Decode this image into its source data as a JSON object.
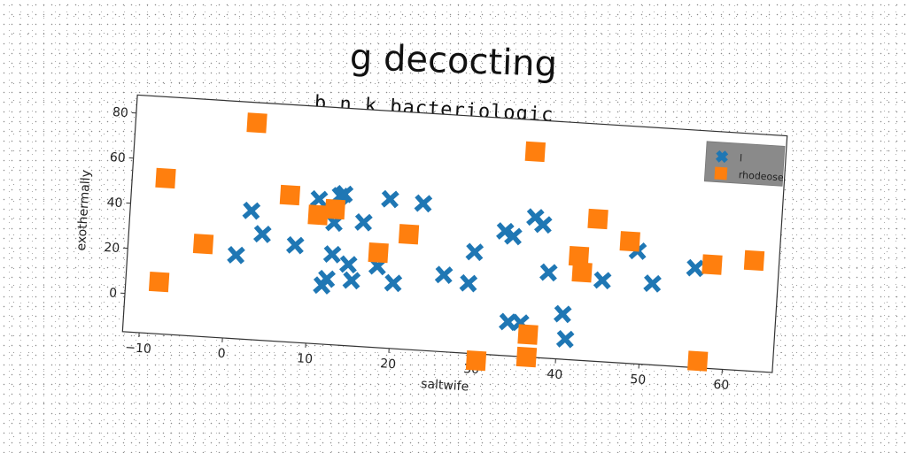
{
  "chart_data": {
    "type": "scatter",
    "title": "g decocting",
    "subtitle": "b n k bacteriologic",
    "xlabel": "saltwife",
    "ylabel": "exothermally",
    "xlim": [
      -12,
      66
    ],
    "ylim": [
      -17,
      88
    ],
    "xticks": [
      -10,
      0,
      10,
      20,
      30,
      40,
      50,
      60
    ],
    "yticks": [
      0,
      20,
      40,
      60,
      80
    ],
    "legend_position": "top-right",
    "series": [
      {
        "name": "l",
        "marker": "x",
        "color": "#1f77b4",
        "points": [
          [
            1,
            20
          ],
          [
            2.5,
            40
          ],
          [
            4,
            30
          ],
          [
            8,
            26
          ],
          [
            10.5,
            47
          ],
          [
            11.5,
            9
          ],
          [
            12,
            12
          ],
          [
            12.5,
            37
          ],
          [
            12.5,
            23
          ],
          [
            13,
            49
          ],
          [
            13.5,
            50
          ],
          [
            14.5,
            19
          ],
          [
            15,
            12
          ],
          [
            16,
            38
          ],
          [
            18,
            19
          ],
          [
            19,
            49
          ],
          [
            20,
            12
          ],
          [
            23,
            48
          ],
          [
            26,
            17
          ],
          [
            29,
            14
          ],
          [
            29.5,
            28
          ],
          [
            33,
            38
          ],
          [
            34,
            36
          ],
          [
            34,
            -2
          ],
          [
            35.5,
            -2
          ],
          [
            36.5,
            45
          ],
          [
            37.5,
            42
          ],
          [
            38.5,
            21
          ],
          [
            40.5,
            3
          ],
          [
            41,
            -8
          ],
          [
            45,
            19
          ],
          [
            49,
            33
          ],
          [
            51,
            19
          ],
          [
            56,
            27
          ]
        ]
      },
      {
        "name": "rhodeose",
        "marker": "s",
        "color": "#ff7f0e",
        "points": [
          [
            -8,
            52
          ],
          [
            -8,
            6
          ],
          [
            -3,
            24
          ],
          [
            2.5,
            79
          ],
          [
            7,
            48
          ],
          [
            10.5,
            40
          ],
          [
            12.5,
            43
          ],
          [
            18,
            25
          ],
          [
            21.5,
            34
          ],
          [
            30.5,
            -20
          ],
          [
            36,
            74
          ],
          [
            36.5,
            -7
          ],
          [
            36.5,
            -17
          ],
          [
            42,
            29
          ],
          [
            42.5,
            22
          ],
          [
            44,
            46
          ],
          [
            48,
            37
          ],
          [
            57,
            -14
          ],
          [
            58,
            29
          ],
          [
            63,
            32
          ]
        ]
      }
    ]
  }
}
